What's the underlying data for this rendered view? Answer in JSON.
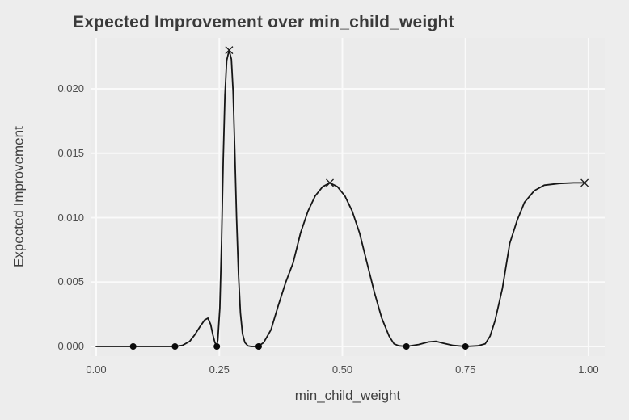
{
  "chart_data": {
    "type": "line",
    "title": "Expected Improvement over min_child_weight",
    "xlabel": "min_child_weight",
    "ylabel": "Expected Improvement",
    "xlim": [
      -0.0115,
      1.0329
    ],
    "ylim": [
      -0.000752,
      0.02395
    ],
    "grid": "major-only, white on gray panel, no axis lines",
    "legend": "none",
    "x_ticks": {
      "values": [
        0.0,
        0.25,
        0.5,
        0.75,
        1.0
      ],
      "labels": [
        "0.00",
        "0.25",
        "0.50",
        "0.75",
        "1.00"
      ]
    },
    "y_ticks": {
      "values": [
        0.0,
        0.005,
        0.01,
        0.015,
        0.02
      ],
      "labels": [
        "0.000",
        "0.005",
        "0.010",
        "0.015",
        "0.020"
      ]
    },
    "series": [
      {
        "name": "expected-improvement-curve",
        "type": "line",
        "points": [
          [
            0.0,
            0
          ],
          [
            0.04,
            0
          ],
          [
            0.075,
            0
          ],
          [
            0.12,
            0
          ],
          [
            0.16,
            0
          ],
          [
            0.175,
            8e-05
          ],
          [
            0.19,
            0.0004
          ],
          [
            0.2,
            0.0009
          ],
          [
            0.21,
            0.0015
          ],
          [
            0.22,
            0.00205
          ],
          [
            0.227,
            0.0022
          ],
          [
            0.2325,
            0.0017
          ],
          [
            0.237,
            0.0009
          ],
          [
            0.241,
            0.0003
          ],
          [
            0.2447,
            5e-05
          ],
          [
            0.247,
            0.0005
          ],
          [
            0.251,
            0.003
          ],
          [
            0.2545,
            0.008
          ],
          [
            0.258,
            0.0145
          ],
          [
            0.2615,
            0.0195
          ],
          [
            0.265,
            0.0222
          ],
          [
            0.27,
            0.023
          ],
          [
            0.2745,
            0.0223
          ],
          [
            0.278,
            0.0198
          ],
          [
            0.2815,
            0.0152
          ],
          [
            0.285,
            0.01
          ],
          [
            0.289,
            0.0056
          ],
          [
            0.293,
            0.0026
          ],
          [
            0.297,
            0.001
          ],
          [
            0.302,
            0.0003
          ],
          [
            0.308,
            5e-05
          ],
          [
            0.315,
            0
          ],
          [
            0.322,
            0
          ],
          [
            0.33,
            5e-05
          ],
          [
            0.34,
            0.0003
          ],
          [
            0.355,
            0.0013
          ],
          [
            0.37,
            0.0032
          ],
          [
            0.385,
            0.005
          ],
          [
            0.4,
            0.0065
          ],
          [
            0.415,
            0.0088
          ],
          [
            0.43,
            0.0105
          ],
          [
            0.445,
            0.0117
          ],
          [
            0.46,
            0.0124
          ],
          [
            0.4746,
            0.0127
          ],
          [
            0.49,
            0.0124
          ],
          [
            0.505,
            0.0117
          ],
          [
            0.52,
            0.0105
          ],
          [
            0.535,
            0.0088
          ],
          [
            0.55,
            0.0065
          ],
          [
            0.565,
            0.0042
          ],
          [
            0.58,
            0.0022
          ],
          [
            0.595,
            0.0008
          ],
          [
            0.605,
            0.0002
          ],
          [
            0.615,
            5e-05
          ],
          [
            0.63,
            0
          ],
          [
            0.655,
            0.00015
          ],
          [
            0.675,
            0.00035
          ],
          [
            0.69,
            0.0004
          ],
          [
            0.705,
            0.00025
          ],
          [
            0.725,
            8e-05
          ],
          [
            0.75,
            0
          ],
          [
            0.775,
            5e-05
          ],
          [
            0.79,
            0.0002
          ],
          [
            0.8,
            0.0008
          ],
          [
            0.81,
            0.002
          ],
          [
            0.825,
            0.0045
          ],
          [
            0.84,
            0.008
          ],
          [
            0.855,
            0.0098
          ],
          [
            0.87,
            0.0112
          ],
          [
            0.89,
            0.0121
          ],
          [
            0.91,
            0.01252
          ],
          [
            0.94,
            0.01265
          ],
          [
            0.97,
            0.0127
          ],
          [
            0.992,
            0.0127
          ]
        ]
      },
      {
        "name": "evaluated-design-points",
        "type": "scatter",
        "marker": "dot",
        "points": [
          [
            0.075,
            0
          ],
          [
            0.16,
            0
          ],
          [
            0.245,
            0
          ],
          [
            0.33,
            0
          ],
          [
            0.63,
            0
          ],
          [
            0.75,
            0
          ]
        ]
      },
      {
        "name": "proposed-points",
        "type": "scatter",
        "marker": "x",
        "points": [
          [
            0.27,
            0.023
          ],
          [
            0.4746,
            0.0127
          ],
          [
            0.992,
            0.0127
          ]
        ]
      }
    ],
    "style": {
      "page_bg": "#EDEDED",
      "panel_bg": "#EBEBEB",
      "grid_color": "#FAFAFA",
      "line_color": "#161616",
      "dot_color": "#0A0A0A",
      "x_marker_color": "#1C1C1C",
      "title_color": "#3A3A3A",
      "axis_label_color": "#404040",
      "tick_label_color": "#4D4D4D"
    }
  }
}
